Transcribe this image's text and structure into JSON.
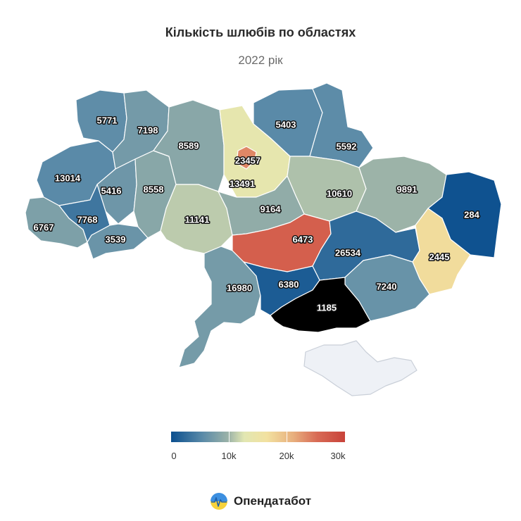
{
  "title": "Кількість шлюбів по областях",
  "subtitle": "2022 рік",
  "legend": {
    "min": 0,
    "max": 30000,
    "ticks": [
      "0",
      "10k",
      "20k",
      "30k"
    ]
  },
  "brand": {
    "name": "Опендатабот"
  },
  "colors": {
    "low": "#0b4f8f",
    "mid": "#e2e7b2",
    "high": "#c8423a",
    "no_data": "#eef1f6"
  },
  "regions": [
    {
      "name": "Волинська",
      "value": "5771"
    },
    {
      "name": "Рівненська",
      "value": "7198"
    },
    {
      "name": "Житомирська",
      "value": "8589"
    },
    {
      "name": "Київська",
      "value": "13491"
    },
    {
      "name": "м. Київ",
      "value": "23457"
    },
    {
      "name": "Чернігівська",
      "value": "5403"
    },
    {
      "name": "Сумська",
      "value": "5592"
    },
    {
      "name": "Полтавська",
      "value": "10610"
    },
    {
      "name": "Харківська",
      "value": "9891"
    },
    {
      "name": "Луганська",
      "value": "284"
    },
    {
      "name": "Львівська",
      "value": "13014"
    },
    {
      "name": "Тернопільська",
      "value": "5416"
    },
    {
      "name": "Хмельницька",
      "value": "8558"
    },
    {
      "name": "Вінницька",
      "value": "11141"
    },
    {
      "name": "Черкаська",
      "value": "9164"
    },
    {
      "name": "Закарпатська",
      "value": "6767"
    },
    {
      "name": "Івано-Франківська",
      "value": "7768"
    },
    {
      "name": "Чернівецька",
      "value": "3539"
    },
    {
      "name": "Кіровоградська",
      "value": "6473"
    },
    {
      "name": "Дніпропетровська",
      "value": "26534"
    },
    {
      "name": "Донецька",
      "value": "2445"
    },
    {
      "name": "Одеська",
      "value": "16980"
    },
    {
      "name": "Миколаївська",
      "value": "6380"
    },
    {
      "name": "Запорізька",
      "value": "7240"
    },
    {
      "name": "Херсонська",
      "value": "1185"
    },
    {
      "name": "Автономна Республіка Крим",
      "value": ""
    }
  ]
}
